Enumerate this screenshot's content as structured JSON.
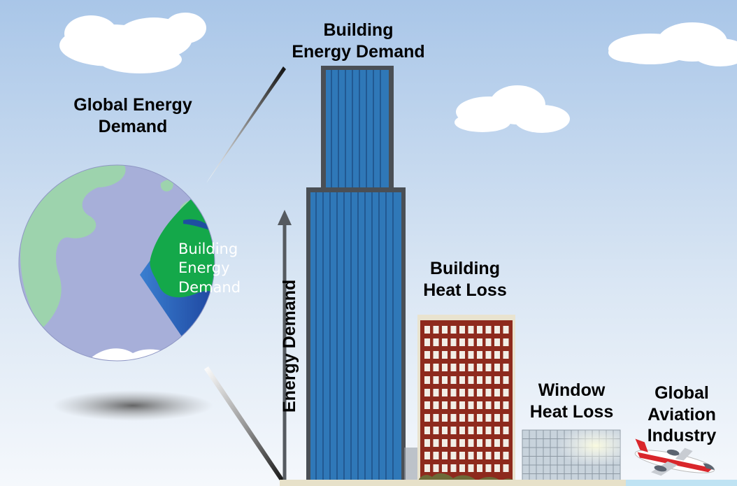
{
  "labels": {
    "global_energy_demand": [
      "Global Energy",
      "Demand"
    ],
    "building_energy_demand_top": [
      "Building",
      "Energy Demand"
    ],
    "building_energy_demand_globe": [
      "Building",
      "Energy",
      "Demand"
    ],
    "energy_demand_axis": "Energy Demand",
    "building_heat_loss": [
      "Building",
      "Heat Loss"
    ],
    "window_heat_loss": [
      "Window",
      "Heat Loss"
    ],
    "global_aviation_industry": [
      "Global",
      "Aviation",
      "Industry"
    ]
  },
  "colors": {
    "sky_top": "#a9c6e8",
    "sky_bottom": "#f5f8fc",
    "ocean": "#a7afd9",
    "land": "#9dd3ad",
    "building_wedge": "#14a84a",
    "skyscraper": "#2f78b8",
    "skyscraper_frame": "#4a4f55",
    "brick": "#8e2a1d",
    "glass_facade": "#c8d3dc",
    "plane_red": "#d9262b"
  },
  "comparison_order": [
    "Global Energy Demand",
    "Building Energy Demand",
    "Building Heat Loss",
    "Window Heat Loss",
    "Global Aviation Industry"
  ]
}
